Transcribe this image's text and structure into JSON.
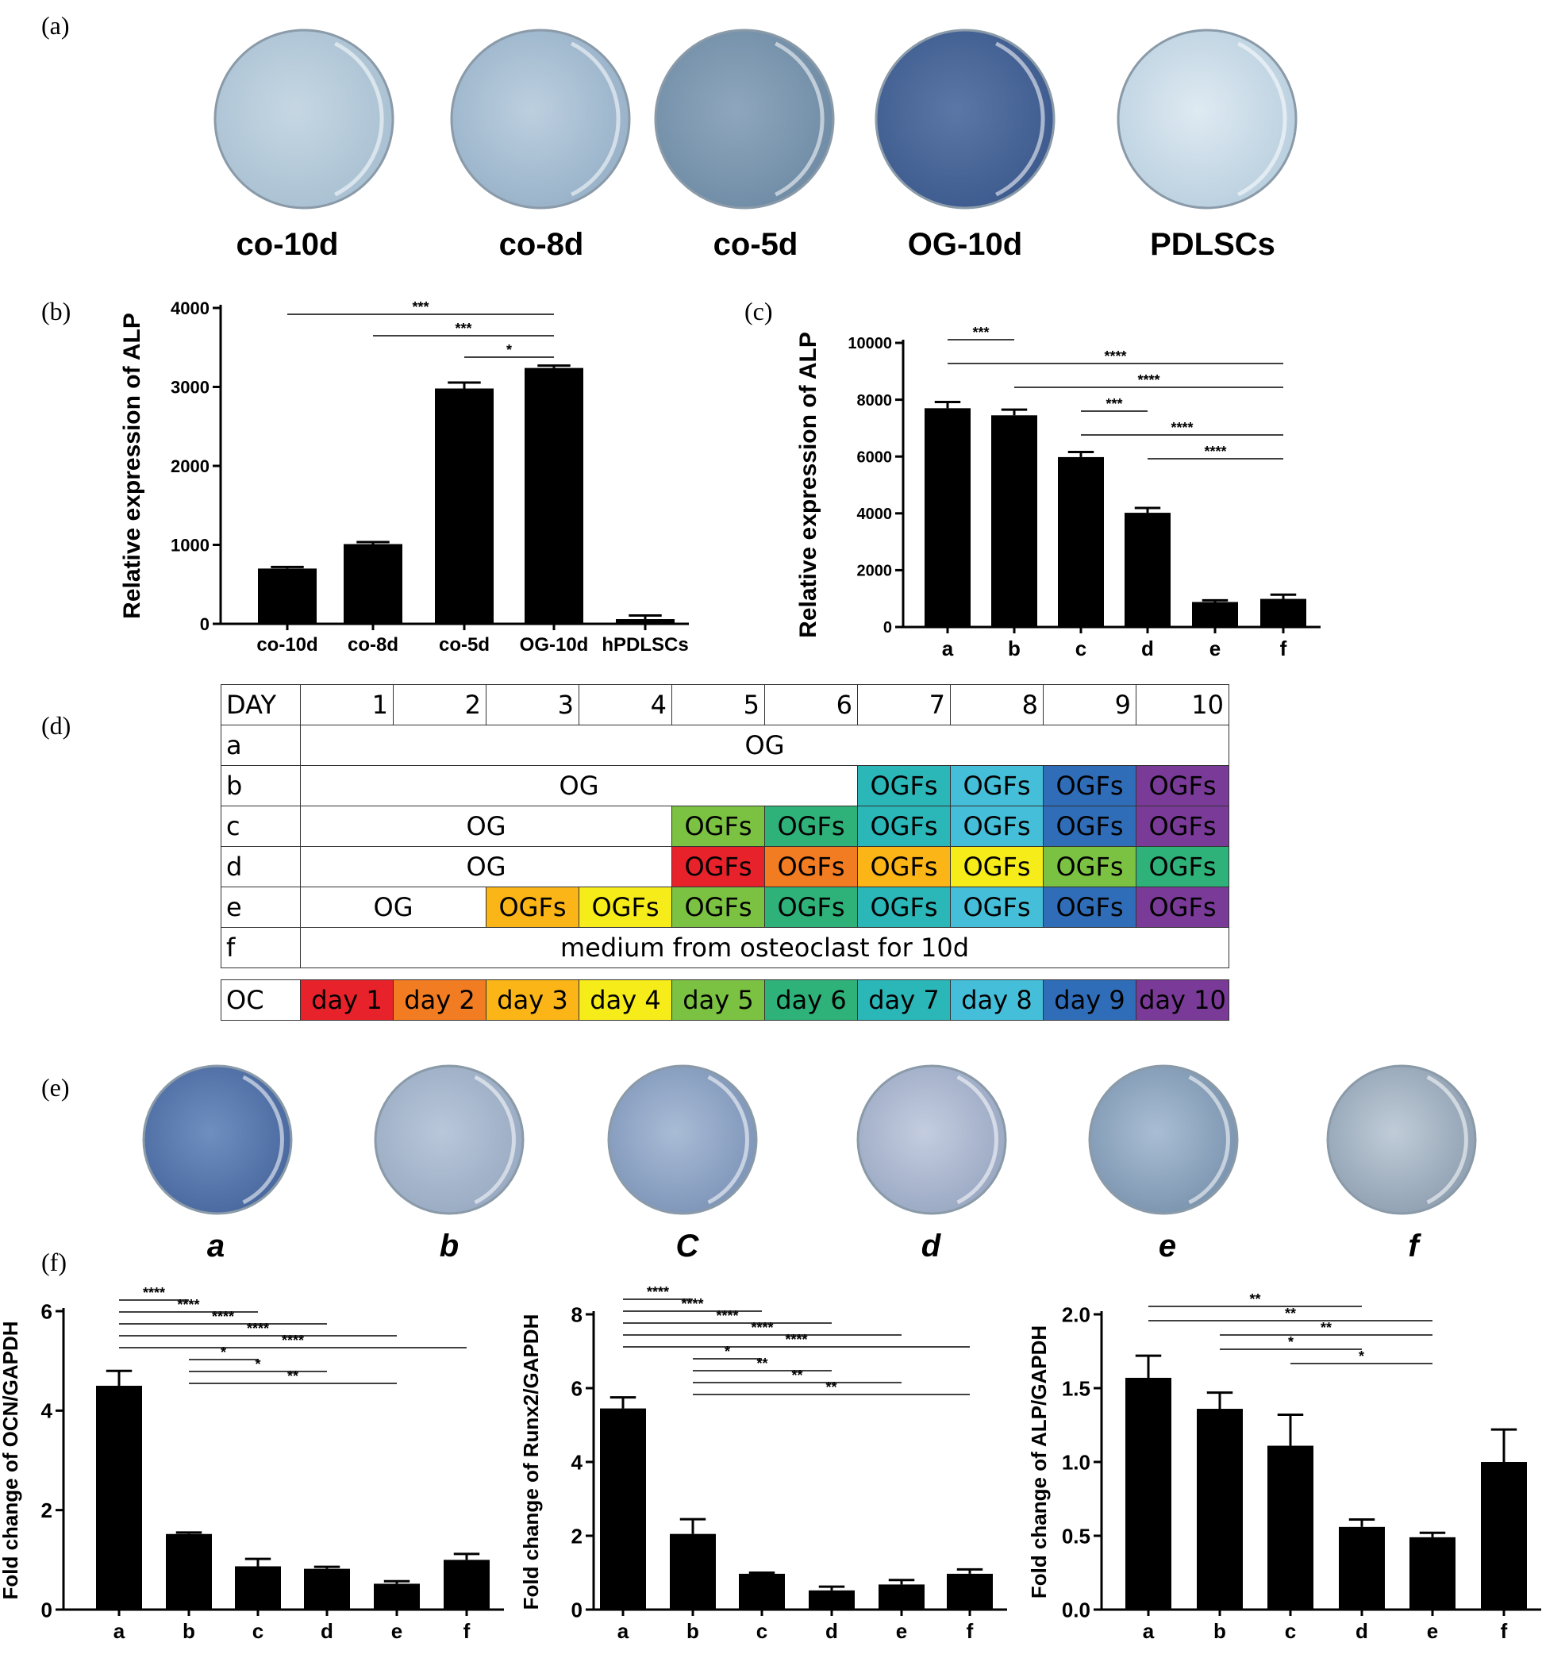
{
  "panels": {
    "a": "(a)",
    "b": "(b)",
    "c": "(c)",
    "d": "(d)",
    "e": "(e)",
    "f": "(f)"
  },
  "dishes_a": {
    "labels": [
      "co-10d",
      "co-8d",
      "co-5d",
      "OG-10d",
      "PDLSCs"
    ],
    "colors": [
      [
        "#c6d7e3",
        "#a8c0d2"
      ],
      [
        "#bccfdf",
        "#97b1c8"
      ],
      [
        "#8ea7bd",
        "#6f8ba5"
      ],
      [
        "#5b77a6",
        "#3d5a8e"
      ],
      [
        "#dfeaf2",
        "#b9cfdf"
      ]
    ]
  },
  "dishes_e": {
    "labels": [
      "a",
      "b",
      "C",
      "d",
      "e",
      "f"
    ],
    "colors": [
      [
        "#6f8fc0",
        "#48679e"
      ],
      [
        "#b9c7da",
        "#98aac2"
      ],
      [
        "#a9bcd6",
        "#7d94b8"
      ],
      [
        "#c4cde0",
        "#99a7c2"
      ],
      [
        "#a9bed4",
        "#7a93ae"
      ],
      [
        "#c0ccd8",
        "#8e9fb1"
      ]
    ]
  },
  "schedule": {
    "header": [
      "DAY",
      "1",
      "2",
      "3",
      "4",
      "5",
      "6",
      "7",
      "8",
      "9",
      "10"
    ],
    "rows": [
      {
        "label": "a",
        "og": "OG",
        "og_span": 10,
        "cells": []
      },
      {
        "label": "b",
        "og": "OG",
        "og_span": 6,
        "cells": [
          "OGFs",
          "OGFs",
          "OGFs",
          "OGFs"
        ],
        "colors": [
          "#2bb6b8",
          "#45bfd9",
          "#2f6db8",
          "#7a3b98"
        ]
      },
      {
        "label": "c",
        "og": "OG",
        "og_span": 4,
        "cells": [
          "OGFs",
          "OGFs",
          "OGFs",
          "OGFs",
          "OGFs",
          "OGFs"
        ],
        "colors": [
          "#7cc242",
          "#2fb279",
          "#2bb6b8",
          "#45bfd9",
          "#2f6db8",
          "#7a3b98"
        ]
      },
      {
        "label": "d",
        "og": "OG",
        "og_span": 4,
        "cells": [
          "OGFs",
          "OGFs",
          "OGFs",
          "OGFs",
          "OGFs",
          "OGFs"
        ],
        "colors": [
          "#e8222b",
          "#f27c22",
          "#fbb516",
          "#f6ec1a",
          "#7cc242",
          "#2fb279"
        ]
      },
      {
        "label": "e",
        "og": "OG",
        "og_span": 2,
        "cells": [
          "OGFs",
          "OGFs",
          "OGFs",
          "OGFs",
          "OGFs",
          "OGFs",
          "OGFs",
          "OGFs"
        ],
        "colors": [
          "#fbb516",
          "#f6ec1a",
          "#7cc242",
          "#2fb279",
          "#2bb6b8",
          "#45bfd9",
          "#2f6db8",
          "#7a3b98"
        ]
      },
      {
        "label": "f",
        "og": "medium from osteoclast for 10d",
        "og_span": 10,
        "cells": []
      }
    ],
    "oc": {
      "label": "OC",
      "cells": [
        "day 1",
        "day 2",
        "day 3",
        "day 4",
        "day 5",
        "day 6",
        "day 7",
        "day 8",
        "day 9",
        "day 10"
      ],
      "colors": [
        "#e8222b",
        "#f27c22",
        "#fbb516",
        "#f6ec1a",
        "#7cc242",
        "#2fb279",
        "#2bb6b8",
        "#45bfd9",
        "#2f6db8",
        "#7a3b98"
      ]
    }
  },
  "chart_data": [
    {
      "id": "b",
      "type": "bar",
      "categories": [
        "co-10d",
        "co-8d",
        "co-5d",
        "OG-10d",
        "hPDLSCs"
      ],
      "values": [
        700,
        1010,
        2980,
        3240,
        60
      ],
      "errors": [
        20,
        25,
        75,
        30,
        45
      ],
      "ylabel": "Relative expression of ALP",
      "ylim": [
        0,
        4000
      ],
      "yticks": [
        0,
        1000,
        2000,
        3000,
        4000
      ],
      "brackets": [
        {
          "from": 0,
          "to": 3,
          "text": "***"
        },
        {
          "from": 1,
          "to": 3,
          "text": "***"
        },
        {
          "from": 2,
          "to": 3,
          "text": "*"
        }
      ]
    },
    {
      "id": "c",
      "type": "bar",
      "categories": [
        "a",
        "b",
        "c",
        "d",
        "e",
        "f"
      ],
      "values": [
        7700,
        7450,
        5980,
        4020,
        880,
        990
      ],
      "errors": [
        220,
        200,
        180,
        170,
        60,
        150
      ],
      "ylabel": "Relative expression of ALP",
      "ylim": [
        0,
        10000
      ],
      "yticks": [
        0,
        2000,
        4000,
        6000,
        8000,
        10000
      ],
      "brackets": [
        {
          "from": 0,
          "to": 1,
          "text": "***"
        },
        {
          "from": 0,
          "to": 5,
          "text": "****"
        },
        {
          "from": 1,
          "to": 5,
          "text": "****"
        },
        {
          "from": 2,
          "to": 3,
          "text": "***"
        },
        {
          "from": 2,
          "to": 5,
          "text": "****"
        },
        {
          "from": 3,
          "to": 5,
          "text": "****"
        }
      ]
    },
    {
      "id": "f1",
      "type": "bar",
      "categories": [
        "a",
        "b",
        "c",
        "d",
        "e",
        "f"
      ],
      "values": [
        4.5,
        1.52,
        0.87,
        0.82,
        0.52,
        1.0
      ],
      "errors": [
        0.3,
        0.03,
        0.15,
        0.04,
        0.05,
        0.12
      ],
      "ylabel": "Fold change of OCN/GAPDH",
      "ylim": [
        0,
        6
      ],
      "yticks": [
        0,
        2,
        4,
        6
      ],
      "brackets": [
        {
          "from": 0,
          "to": 1,
          "text": "****"
        },
        {
          "from": 0,
          "to": 2,
          "text": "****"
        },
        {
          "from": 0,
          "to": 3,
          "text": "****"
        },
        {
          "from": 0,
          "to": 4,
          "text": "****"
        },
        {
          "from": 0,
          "to": 5,
          "text": "****"
        },
        {
          "from": 1,
          "to": 2,
          "text": "*"
        },
        {
          "from": 1,
          "to": 3,
          "text": "*"
        },
        {
          "from": 1,
          "to": 4,
          "text": "**"
        }
      ]
    },
    {
      "id": "f2",
      "type": "bar",
      "categories": [
        "a",
        "b",
        "c",
        "d",
        "e",
        "f"
      ],
      "values": [
        5.45,
        2.05,
        0.97,
        0.52,
        0.68,
        0.97
      ],
      "errors": [
        0.3,
        0.4,
        0.03,
        0.1,
        0.12,
        0.12
      ],
      "ylabel": "Fold change of Runx2/GAPDH",
      "ylim": [
        0,
        8
      ],
      "yticks": [
        0,
        2,
        4,
        6,
        8
      ],
      "brackets": [
        {
          "from": 0,
          "to": 1,
          "text": "****"
        },
        {
          "from": 0,
          "to": 2,
          "text": "****"
        },
        {
          "from": 0,
          "to": 3,
          "text": "****"
        },
        {
          "from": 0,
          "to": 4,
          "text": "****"
        },
        {
          "from": 0,
          "to": 5,
          "text": "****"
        },
        {
          "from": 1,
          "to": 2,
          "text": "*"
        },
        {
          "from": 1,
          "to": 3,
          "text": "**"
        },
        {
          "from": 1,
          "to": 4,
          "text": "**"
        },
        {
          "from": 1,
          "to": 5,
          "text": "**"
        }
      ]
    },
    {
      "id": "f3",
      "type": "bar",
      "categories": [
        "a",
        "b",
        "c",
        "d",
        "e",
        "f"
      ],
      "values": [
        1.57,
        1.36,
        1.11,
        0.56,
        0.49,
        1.0
      ],
      "errors": [
        0.15,
        0.11,
        0.21,
        0.05,
        0.03,
        0.22
      ],
      "ylabel": "Fold change of ALP/GAPDH",
      "ylim": [
        0,
        2.0
      ],
      "yticks": [
        "0.0",
        "0.5",
        "1.0",
        "1.5",
        "2.0"
      ],
      "brackets": [
        {
          "from": 0,
          "to": 3,
          "text": "**"
        },
        {
          "from": 0,
          "to": 4,
          "text": "**"
        },
        {
          "from": 1,
          "to": 4,
          "text": "**"
        },
        {
          "from": 1,
          "to": 3,
          "text": "*"
        },
        {
          "from": 2,
          "to": 4,
          "text": "*"
        }
      ]
    }
  ]
}
